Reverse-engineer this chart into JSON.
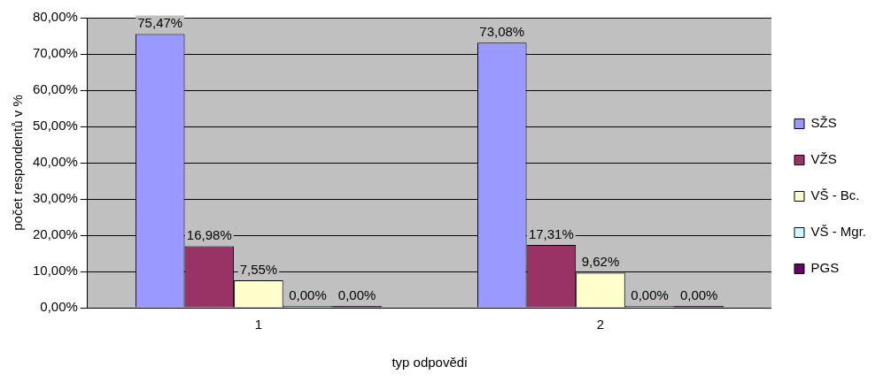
{
  "chart_data": {
    "type": "bar",
    "xlabel": "typ odpovědi",
    "ylabel": "počet respondentů v %",
    "categories": [
      "1",
      "2"
    ],
    "series": [
      {
        "name": "SŽS",
        "color": "#9999ff",
        "values": [
          75.47,
          73.08
        ],
        "value_labels": [
          "75,47%",
          "73,08%"
        ]
      },
      {
        "name": "VŽS",
        "color": "#993366",
        "values": [
          16.98,
          17.31
        ],
        "value_labels": [
          "16,98%",
          "17,31%"
        ]
      },
      {
        "name": "VŠ - Bc.",
        "color": "#ffffcc",
        "values": [
          7.55,
          9.62
        ],
        "value_labels": [
          "7,55%",
          "9,62%"
        ]
      },
      {
        "name": "VŠ - Mgr.",
        "color": "#ccffff",
        "values": [
          0,
          0
        ],
        "value_labels": [
          "0,00%",
          "0,00%"
        ]
      },
      {
        "name": "PGS",
        "color": "#660066",
        "values": [
          0,
          0
        ],
        "value_labels": [
          "0,00%",
          "0,00%"
        ]
      }
    ],
    "ylim": [
      0,
      80
    ],
    "yticks": [
      {
        "value": 0,
        "label": "0,00%"
      },
      {
        "value": 10,
        "label": "10,00%"
      },
      {
        "value": 20,
        "label": "20,00%"
      },
      {
        "value": 30,
        "label": "30,00%"
      },
      {
        "value": 40,
        "label": "40,00%"
      },
      {
        "value": 50,
        "label": "50,00%"
      },
      {
        "value": 60,
        "label": "60,00%"
      },
      {
        "value": 70,
        "label": "70,00%"
      },
      {
        "value": 80,
        "label": "80,00%"
      }
    ],
    "grid": "y",
    "legend": "right"
  }
}
